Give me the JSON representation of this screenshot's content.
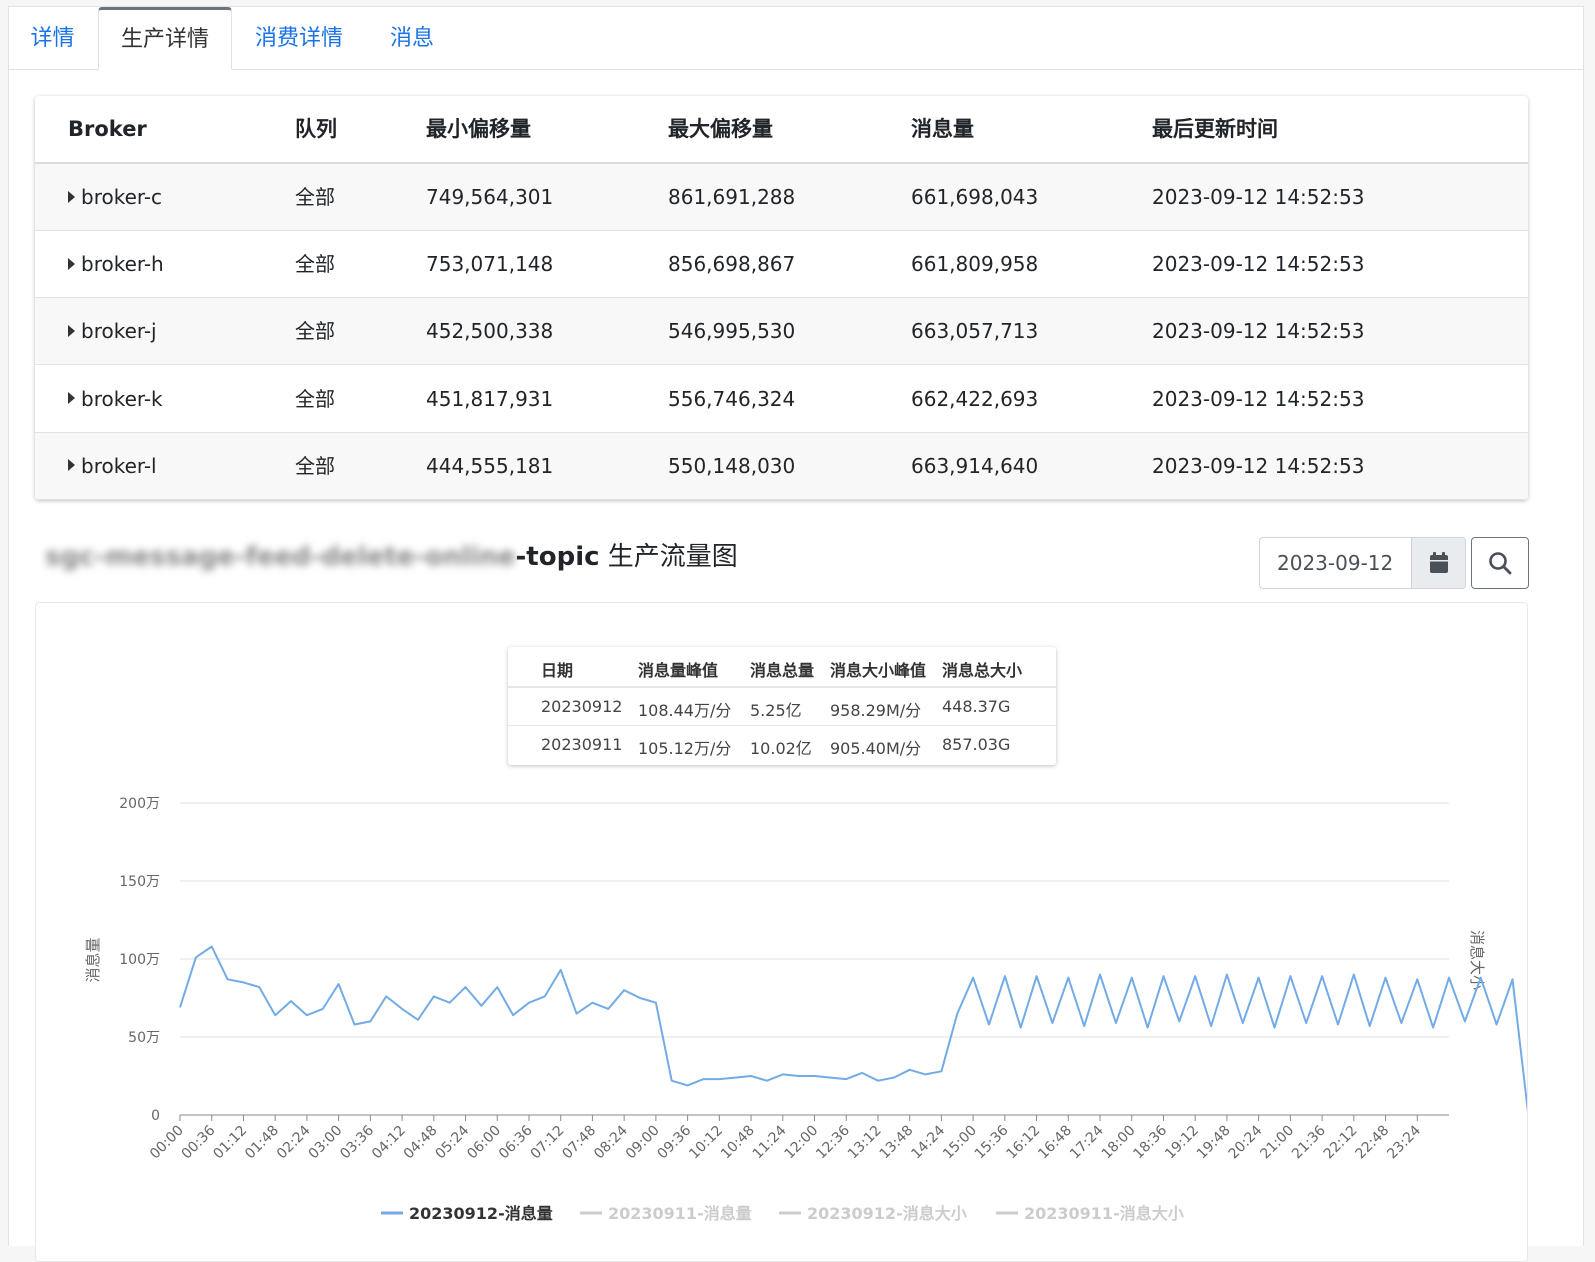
{
  "tabs": [
    {
      "label": "详情",
      "active": false
    },
    {
      "label": "生产详情",
      "active": true
    },
    {
      "label": "消费详情",
      "active": false
    },
    {
      "label": "消息",
      "active": false
    }
  ],
  "table": {
    "headers": [
      "Broker",
      "队列",
      "最小偏移量",
      "最大偏移量",
      "消息量",
      "最后更新时间"
    ],
    "rows": [
      {
        "broker": "broker-c",
        "queue": "全部",
        "min_offset": "749,564,301",
        "max_offset": "861,691,288",
        "count": "661,698,043",
        "updated": "2023-09-12 14:52:53"
      },
      {
        "broker": "broker-h",
        "queue": "全部",
        "min_offset": "753,071,148",
        "max_offset": "856,698,867",
        "count": "661,809,958",
        "updated": "2023-09-12 14:52:53"
      },
      {
        "broker": "broker-j",
        "queue": "全部",
        "min_offset": "452,500,338",
        "max_offset": "546,995,530",
        "count": "663,057,713",
        "updated": "2023-09-12 14:52:53"
      },
      {
        "broker": "broker-k",
        "queue": "全部",
        "min_offset": "451,817,931",
        "max_offset": "556,746,324",
        "count": "662,422,693",
        "updated": "2023-09-12 14:52:53"
      },
      {
        "broker": "broker-l",
        "queue": "全部",
        "min_offset": "444,555,181",
        "max_offset": "550,148,030",
        "count": "663,914,640",
        "updated": "2023-09-12 14:52:53"
      }
    ]
  },
  "section": {
    "topic_blurred": "sgc-message-feed-delete-online",
    "topic_suffix": "-topic",
    "title_suffix": " 生产流量图"
  },
  "date_picker": {
    "value": "2023-09-12",
    "icon": "calendar-icon"
  },
  "search_button": {
    "icon": "search-icon"
  },
  "stats_table": {
    "headers": [
      "日期",
      "消息量峰值",
      "消息总量",
      "消息大小峰值",
      "消息总大小"
    ],
    "rows": [
      [
        "20230912",
        "108.44万/分",
        "5.25亿",
        "958.29M/分",
        "448.37G"
      ],
      [
        "20230911",
        "105.12万/分",
        "10.02亿",
        "905.40M/分",
        "857.03G"
      ]
    ]
  },
  "chart_data": {
    "type": "line",
    "ylabel": "消息量",
    "y2label": "消息大小",
    "ylim": [
      0,
      2000000
    ],
    "yticks": [
      {
        "value": 0,
        "label": "0"
      },
      {
        "value": 500000,
        "label": "50万"
      },
      {
        "value": 1000000,
        "label": "100万"
      },
      {
        "value": 1500000,
        "label": "150万"
      },
      {
        "value": 2000000,
        "label": "200万"
      }
    ],
    "xticks": [
      "00:00",
      "00:36",
      "01:12",
      "01:48",
      "02:24",
      "03:00",
      "03:36",
      "04:12",
      "04:48",
      "05:24",
      "06:00",
      "06:36",
      "07:12",
      "07:48",
      "08:24",
      "09:00",
      "09:36",
      "10:12",
      "10:48",
      "11:24",
      "12:00",
      "12:36",
      "13:12",
      "13:48",
      "14:24",
      "15:00",
      "15:36",
      "16:12",
      "16:48",
      "17:24",
      "18:00",
      "18:36",
      "19:12",
      "19:48",
      "20:24",
      "21:00",
      "21:36",
      "22:12",
      "22:48",
      "23:24"
    ],
    "grid": true,
    "legend_position": "bottom",
    "colors": {
      "active": "#73abe6",
      "inactive": "#cccccc",
      "grid": "#e0e0e0"
    },
    "series": [
      {
        "name": "20230912-消息量",
        "active": true,
        "time_step_min": 18,
        "values": [
          690000,
          1010000,
          1080000,
          870000,
          850000,
          820000,
          640000,
          730000,
          640000,
          680000,
          840000,
          580000,
          600000,
          760000,
          680000,
          610000,
          760000,
          720000,
          820000,
          700000,
          820000,
          640000,
          720000,
          760000,
          930000,
          650000,
          720000,
          680000,
          800000,
          750000,
          720000,
          220000,
          190000,
          230000,
          230000,
          240000,
          250000,
          220000,
          260000,
          250000,
          250000,
          240000,
          230000,
          270000,
          220000,
          240000,
          290000,
          260000,
          280000,
          650000,
          880000,
          580000,
          890000,
          560000,
          890000,
          590000,
          880000,
          570000,
          900000,
          590000,
          880000,
          560000,
          890000,
          600000,
          890000,
          570000,
          900000,
          590000,
          880000,
          560000,
          890000,
          590000,
          890000,
          580000,
          900000,
          570000,
          880000,
          590000,
          870000,
          560000,
          880000,
          600000,
          880000,
          580000,
          870000,
          0,
          0,
          0,
          0,
          0,
          0,
          0,
          0,
          0,
          0,
          0,
          0,
          0,
          0,
          0,
          0,
          0,
          0,
          0,
          0,
          0,
          0,
          0,
          0,
          0,
          0,
          0,
          0,
          0,
          0,
          0,
          0,
          0,
          0,
          0,
          0,
          0,
          0,
          0,
          0,
          0,
          0,
          0,
          0,
          0,
          0,
          0,
          0,
          0,
          0,
          0,
          0,
          0,
          0,
          0,
          0,
          0,
          0,
          0,
          0,
          0,
          0,
          0,
          0,
          0,
          0,
          0
        ]
      },
      {
        "name": "20230911-消息量",
        "active": false,
        "values": []
      },
      {
        "name": "20230912-消息大小",
        "active": false,
        "values": []
      },
      {
        "name": "20230911-消息大小",
        "active": false,
        "values": []
      }
    ]
  }
}
